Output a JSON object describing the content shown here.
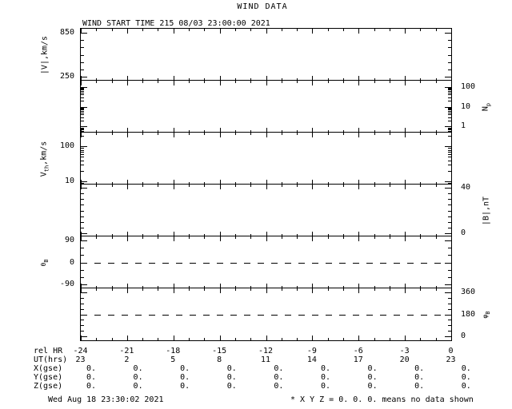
{
  "title": "WIND DATA",
  "footer": {
    "left": "Wed Aug 18 23:30:02 2021",
    "right": "* X Y Z = 0. 0. 0. means no data shown"
  },
  "chart_data": {
    "type": "line",
    "title": "WIND DATA",
    "annotation": "WIND START TIME 215 08/03 23:00:00 2021",
    "grid": false,
    "legend": false,
    "x_axis": {
      "label_top": "rel HR",
      "label_bottom": "UT(hrs)",
      "min": -24,
      "max": 0,
      "minor_step": 1,
      "major_step": 3
    },
    "panels": [
      {
        "id": "v",
        "label_pre": "|V|,km/s",
        "label_sub": "",
        "label_post": "",
        "label_side": "left",
        "scale": "linear",
        "ymin": 200,
        "ymax": 900,
        "major_ticks": [
          850,
          250
        ],
        "minor_ticks": [
          750,
          650,
          550,
          450,
          350
        ],
        "ref_line": null,
        "series": []
      },
      {
        "id": "np",
        "label_pre": "N",
        "label_sub": "p",
        "label_post": "",
        "label_side": "right",
        "scale": "log",
        "ymin": 0.5,
        "ymax": 200,
        "major_ticks": [
          100,
          10,
          1
        ],
        "minor_ticks": [
          0.6,
          0.7,
          0.8,
          0.9,
          2,
          3,
          4,
          5,
          6,
          7,
          8,
          9,
          20,
          30,
          40,
          50,
          60,
          70,
          80,
          90
        ],
        "ref_line": null,
        "series": []
      },
      {
        "id": "vth",
        "label_pre": "V",
        "label_sub": "th",
        "label_post": ",km/s",
        "label_side": "left",
        "scale": "log",
        "ymin": 8,
        "ymax": 250,
        "major_ticks": [
          100,
          10
        ],
        "minor_ticks": [
          9,
          20,
          30,
          40,
          50,
          60,
          70,
          80,
          90,
          200
        ],
        "ref_line": null,
        "series": []
      },
      {
        "id": "b",
        "label_pre": "|B|,nT",
        "label_sub": "",
        "label_post": "",
        "label_side": "right",
        "scale": "linear",
        "ymin": -3,
        "ymax": 43,
        "major_ticks": [
          40,
          0
        ],
        "minor_ticks": [
          35,
          30,
          25,
          20,
          15,
          10,
          5
        ],
        "ref_line": null,
        "series": []
      },
      {
        "id": "theta-b",
        "label_pre": "θ",
        "label_sub": "B",
        "label_post": "",
        "label_side": "left",
        "scale": "linear",
        "ymin": -105,
        "ymax": 105,
        "major_ticks": [
          90,
          0,
          -90
        ],
        "minor_ticks": [
          60,
          30,
          -30,
          -60
        ],
        "ref_line": 0,
        "series": []
      },
      {
        "id": "phi-b",
        "label_pre": "φ",
        "label_sub": "B",
        "label_post": "",
        "label_side": "right",
        "scale": "linear",
        "ymin": -30,
        "ymax": 390,
        "major_ticks": [
          360,
          180,
          0
        ],
        "minor_ticks": [
          315,
          270,
          225,
          135,
          90,
          45
        ],
        "ref_line": 180,
        "series": []
      }
    ]
  },
  "bottom_table": {
    "rows": [
      {
        "label": "rel HR",
        "align": "tick-center",
        "values": [
          "-24",
          "-21",
          "-18",
          "-15",
          "-12",
          "-9",
          "-6",
          "-3",
          "0"
        ]
      },
      {
        "label": "UT(hrs)",
        "align": "tick-center",
        "values": [
          "23",
          "2",
          "5",
          "8",
          "11",
          "14",
          "17",
          "20",
          "23"
        ]
      },
      {
        "label": "X(gse)",
        "align": "right",
        "values": [
          "0.",
          "0.",
          "0.",
          "0.",
          "0.",
          "0.",
          "0.",
          "0.",
          "0."
        ]
      },
      {
        "label": "Y(gse)",
        "align": "right",
        "values": [
          "0.",
          "0.",
          "0.",
          "0.",
          "0.",
          "0.",
          "0.",
          "0.",
          "0."
        ]
      },
      {
        "label": "Z(gse)",
        "align": "right",
        "values": [
          "0.",
          "0.",
          "0.",
          "0.",
          "0.",
          "0.",
          "0.",
          "0.",
          "0."
        ]
      }
    ]
  }
}
